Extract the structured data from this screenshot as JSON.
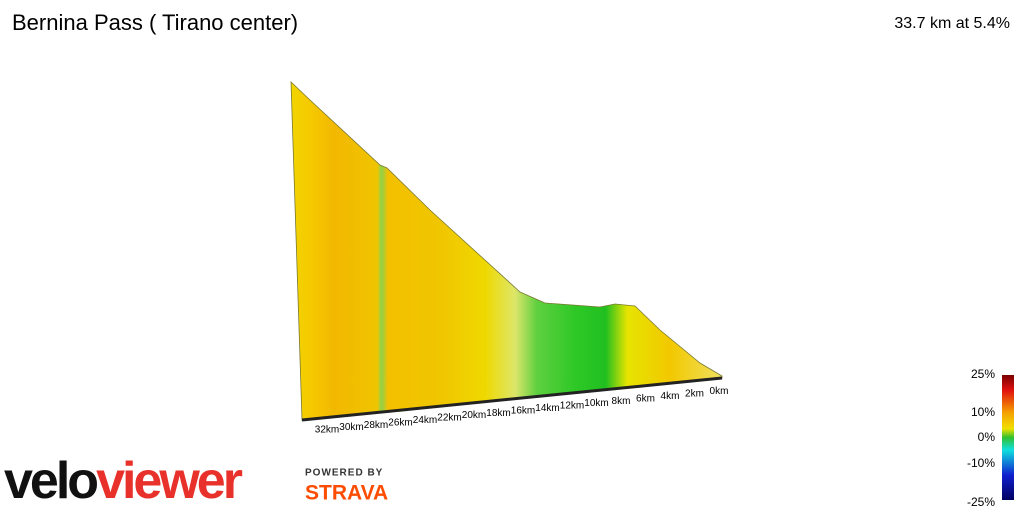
{
  "header": {
    "title": "Bernina Pass ( Tirano center)",
    "summary": "33.7 km at 5.4%"
  },
  "distance_labels": [
    "32km",
    "30km",
    "28km",
    "26km",
    "24km",
    "22km",
    "20km",
    "18km",
    "16km",
    "14km",
    "12km",
    "10km",
    "8km",
    "6km",
    "4km",
    "2km",
    "0km"
  ],
  "gradient_legend": [
    "25%",
    "10%",
    "0%",
    "-10%",
    "-25%"
  ],
  "branding": {
    "logo_part1": "velo",
    "logo_part2": "viewer",
    "powered_by": "POWERED BY",
    "strava": "STRAVA"
  }
}
